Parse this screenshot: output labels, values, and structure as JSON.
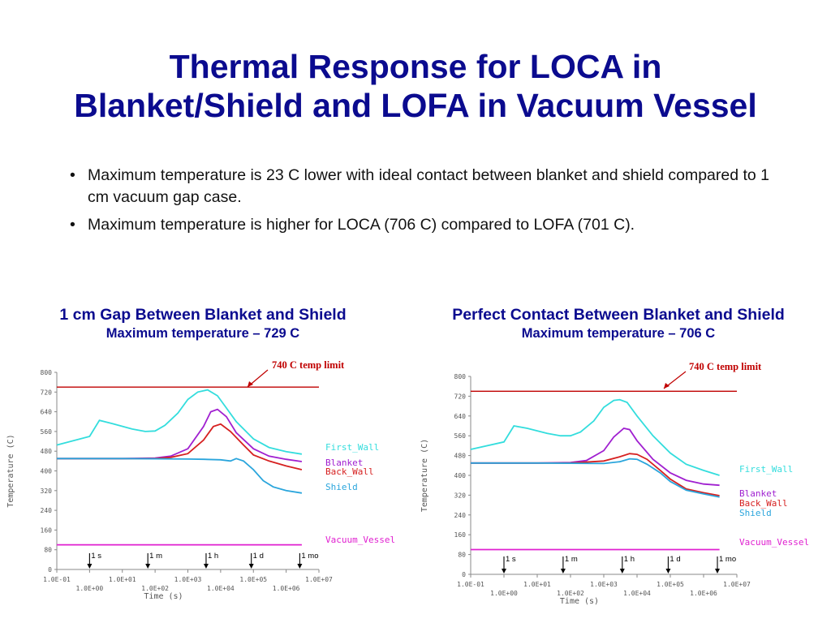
{
  "slide": {
    "title_line1": "Thermal Response for LOCA in",
    "title_line2": "Blanket/Shield and LOFA in Vacuum Vessel",
    "bullets": [
      "Maximum temperature is 23 C lower with ideal contact between blanket and shield compared to 1 cm vacuum gap case.",
      "Maximum temperature is higher for LOCA  (706 C) compared to LOFA (701 C)."
    ],
    "bullet_glyph": "•"
  },
  "colors": {
    "title": "#0b0b8f",
    "First_Wall": "#33dddd",
    "Blanket": "#a020d0",
    "Back_Wall": "#d62020",
    "Shield": "#2aa5dc",
    "Vacuum_Vessel": "#e020d0",
    "limit": "#c00000"
  },
  "chart_data": [
    {
      "type": "line",
      "heading": "1 cm Gap Between Blanket and Shield",
      "subheading": "Maximum temperature – 729 C",
      "xlabel": "Time (s)",
      "ylabel": "Temperature (C)",
      "x_scale": "log",
      "xlim": [
        0.1,
        10000000
      ],
      "ylim": [
        0,
        800
      ],
      "y_ticks": [
        0,
        80,
        160,
        240,
        320,
        400,
        480,
        560,
        640,
        720,
        800
      ],
      "x_ticks_upper": [
        "1.0E-01",
        "1.0E+01",
        "1.0E+03",
        "1.0E+05",
        "1.0E+07"
      ],
      "x_ticks_lower": [
        "1.0E+00",
        "1.0E+02",
        "1.0E+04",
        "1.0E+06"
      ],
      "limit_line": {
        "value": 740,
        "label": "740 C temp limit"
      },
      "markers": [
        {
          "x": 1,
          "label": "1 s"
        },
        {
          "x": 60,
          "label": "1 m"
        },
        {
          "x": 3600,
          "label": "1 h"
        },
        {
          "x": 86400,
          "label": "1 d"
        },
        {
          "x": 2600000,
          "label": "1 mo"
        }
      ],
      "series": [
        {
          "name": "First_Wall",
          "x": [
            0.1,
            1,
            2,
            5,
            20,
            50,
            100,
            200,
            500,
            1000,
            2000,
            4000,
            8000,
            15000,
            30000,
            100000,
            300000,
            1000000,
            3000000
          ],
          "y": [
            505,
            540,
            605,
            592,
            570,
            560,
            562,
            585,
            635,
            690,
            720,
            729,
            705,
            655,
            600,
            530,
            495,
            478,
            468
          ]
        },
        {
          "name": "Blanket",
          "x": [
            0.1,
            10,
            100,
            300,
            1000,
            3000,
            5000,
            8000,
            15000,
            30000,
            100000,
            300000,
            1000000,
            3000000
          ],
          "y": [
            450,
            450,
            452,
            460,
            490,
            580,
            640,
            650,
            620,
            555,
            490,
            460,
            447,
            438
          ]
        },
        {
          "name": "Back_Wall",
          "x": [
            0.1,
            10,
            100,
            300,
            1000,
            3000,
            6000,
            10000,
            20000,
            50000,
            100000,
            300000,
            1000000,
            3000000
          ],
          "y": [
            450,
            450,
            450,
            455,
            470,
            525,
            580,
            590,
            560,
            505,
            465,
            440,
            420,
            405
          ]
        },
        {
          "name": "Shield",
          "x": [
            0.1,
            10,
            1000,
            3000,
            10000,
            20000,
            30000,
            50000,
            100000,
            200000,
            400000,
            1000000,
            3000000
          ],
          "y": [
            450,
            450,
            448,
            447,
            445,
            440,
            450,
            440,
            405,
            360,
            335,
            320,
            310
          ]
        },
        {
          "name": "Vacuum_Vessel",
          "x": [
            0.1,
            3000000
          ],
          "y": [
            100,
            100
          ]
        }
      ],
      "legend": [
        "First_Wall",
        "Blanket",
        "Back_Wall",
        "Shield",
        "Vacuum_Vessel"
      ]
    },
    {
      "type": "line",
      "heading": "Perfect Contact Between Blanket and Shield",
      "subheading": "Maximum temperature – 706 C",
      "xlabel": "Time (s)",
      "ylabel": "Temperature (C)",
      "x_scale": "log",
      "xlim": [
        0.1,
        10000000
      ],
      "ylim": [
        0,
        800
      ],
      "y_ticks": [
        0,
        80,
        160,
        240,
        320,
        400,
        480,
        560,
        640,
        720,
        800
      ],
      "x_ticks_upper": [
        "1.0E-01",
        "1.0E+01",
        "1.0E+03",
        "1.0E+05",
        "1.0E+07"
      ],
      "x_ticks_lower": [
        "1.0E+00",
        "1.0E+02",
        "1.0E+04",
        "1.0E+06"
      ],
      "limit_line": {
        "value": 740,
        "label": "740 C temp limit"
      },
      "markers": [
        {
          "x": 1,
          "label": "1 s"
        },
        {
          "x": 60,
          "label": "1 m"
        },
        {
          "x": 3600,
          "label": "1 h"
        },
        {
          "x": 86400,
          "label": "1 d"
        },
        {
          "x": 2600000,
          "label": "1 mo"
        }
      ],
      "series": [
        {
          "name": "First_Wall",
          "x": [
            0.1,
            1,
            2,
            5,
            20,
            50,
            100,
            200,
            500,
            1000,
            2000,
            3000,
            5000,
            10000,
            30000,
            100000,
            300000,
            1000000,
            3000000
          ],
          "y": [
            505,
            535,
            600,
            590,
            570,
            560,
            560,
            575,
            620,
            675,
            703,
            706,
            695,
            640,
            560,
            490,
            445,
            420,
            400
          ]
        },
        {
          "name": "Blanket",
          "x": [
            0.1,
            10,
            100,
            300,
            1000,
            2000,
            4000,
            6000,
            10000,
            30000,
            100000,
            300000,
            1000000,
            3000000
          ],
          "y": [
            450,
            450,
            452,
            460,
            500,
            555,
            590,
            585,
            540,
            465,
            410,
            380,
            365,
            360
          ]
        },
        {
          "name": "Back_Wall",
          "x": [
            0.1,
            10,
            100,
            1000,
            3000,
            6000,
            10000,
            20000,
            50000,
            100000,
            300000,
            1000000,
            3000000
          ],
          "y": [
            450,
            450,
            450,
            458,
            475,
            488,
            485,
            465,
            420,
            385,
            345,
            330,
            318
          ]
        },
        {
          "name": "Shield",
          "x": [
            0.1,
            10,
            1000,
            3000,
            6000,
            10000,
            20000,
            50000,
            100000,
            300000,
            1000000,
            3000000
          ],
          "y": [
            450,
            450,
            448,
            455,
            467,
            465,
            445,
            410,
            375,
            340,
            325,
            312
          ]
        },
        {
          "name": "Vacuum_Vessel",
          "x": [
            0.1,
            3000000
          ],
          "y": [
            100,
            100
          ]
        }
      ],
      "legend": [
        "First_Wall",
        "Blanket",
        "Back_Wall",
        "Shield",
        "Vacuum_Vessel"
      ]
    }
  ]
}
